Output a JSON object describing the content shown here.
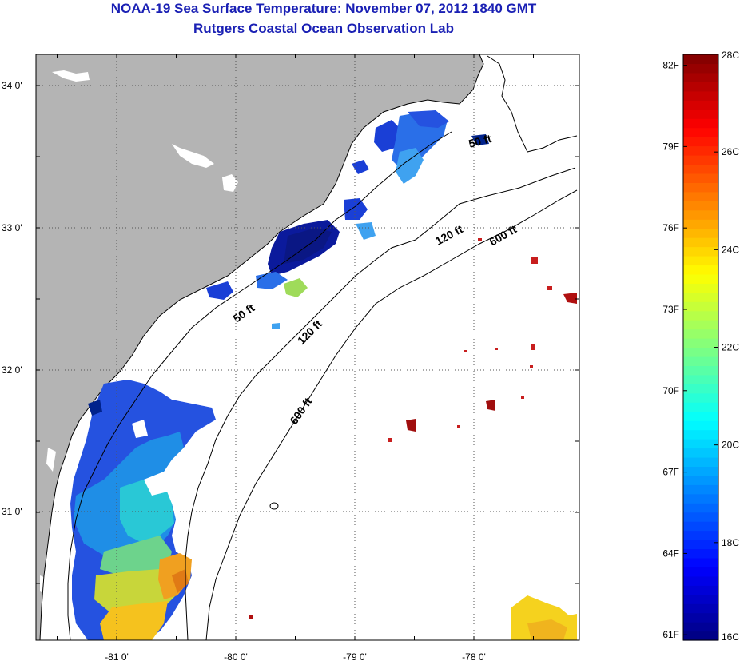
{
  "title": "NOAA-19 Sea Surface Temperature:  November 07, 2012 1840 GMT",
  "subtitle": "Rutgers Coastal Ocean Observation Lab",
  "map": {
    "lon_labels": [
      "-81 0'",
      "-80 0'",
      "-79 0'",
      "-78 0'"
    ],
    "lat_labels": [
      "34 0'",
      "33 0'",
      "32 0'",
      "31 0'"
    ],
    "land_color": "#b4b4b4",
    "ocean_color": "#ffffff",
    "contour_labels": [
      "50 ft",
      "50 ft",
      "120 ft",
      "120 ft",
      "600 ft",
      "600 ft"
    ]
  },
  "colorbar": {
    "min_c": 16,
    "max_c": 28,
    "celsius_labels": [
      "28C",
      "26C",
      "24C",
      "22C",
      "20C",
      "18C",
      "16C"
    ],
    "fahrenheit_labels": [
      "82F",
      "79F",
      "76F",
      "73F",
      "70F",
      "67F",
      "64F",
      "61F"
    ],
    "colormap": "jet"
  }
}
